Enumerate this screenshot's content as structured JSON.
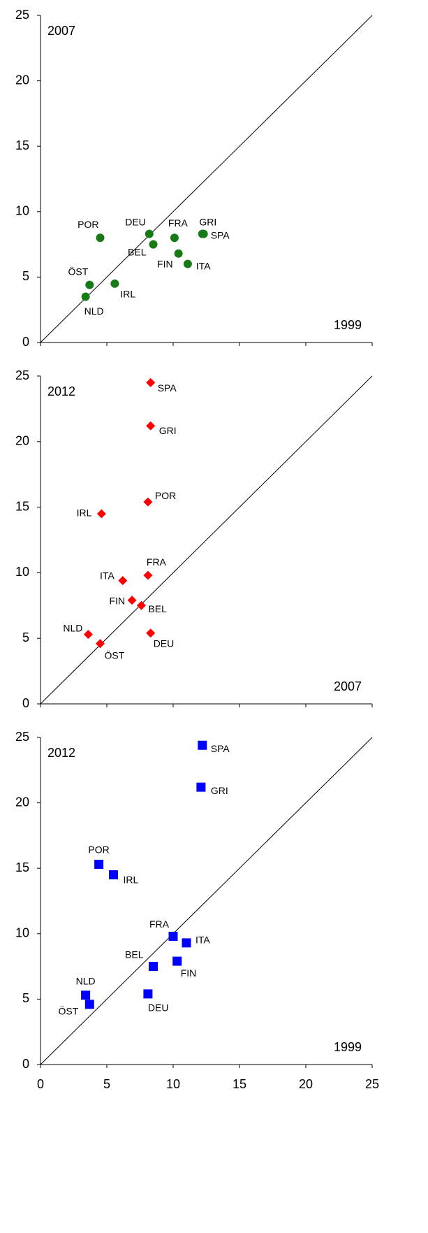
{
  "chart_data": [
    {
      "type": "scatter",
      "y_label": "2007",
      "x_label": "1999",
      "marker": "circle",
      "color": "#177a17",
      "labels": [
        "SPA",
        "GRI",
        "POR",
        "IRL",
        "FRA",
        "ITA",
        "FIN",
        "BEL",
        "NLD",
        "ÖST",
        "DEU"
      ],
      "x": [
        12.3,
        12.2,
        4.5,
        5.6,
        10.1,
        11.1,
        10.4,
        8.5,
        3.4,
        3.7,
        8.2
      ],
      "values": [
        8.3,
        8.3,
        8.0,
        4.5,
        8.0,
        6.0,
        6.8,
        7.5,
        3.5,
        4.4,
        8.3
      ],
      "xlim": [
        0,
        25
      ],
      "ylim": [
        0,
        25
      ],
      "xticks": [
        0,
        5,
        10,
        15,
        20,
        25
      ],
      "yticks": [
        0,
        5,
        10,
        15,
        20,
        25
      ],
      "xtick_labels": false
    },
    {
      "type": "scatter",
      "y_label": "2012",
      "x_label": "2007",
      "marker": "diamond",
      "color": "#ff0000",
      "labels": [
        "SPA",
        "GRI",
        "POR",
        "IRL",
        "FRA",
        "ITA",
        "FIN",
        "BEL",
        "NLD",
        "ÖST",
        "DEU"
      ],
      "x": [
        8.3,
        8.3,
        8.1,
        4.6,
        8.1,
        6.2,
        6.9,
        7.6,
        3.6,
        4.5,
        8.3
      ],
      "values": [
        24.5,
        21.2,
        15.4,
        14.5,
        9.8,
        9.4,
        7.9,
        7.5,
        5.3,
        4.6,
        5.4
      ],
      "xlim": [
        0,
        25
      ],
      "ylim": [
        0,
        25
      ],
      "xticks": [
        0,
        5,
        10,
        15,
        20,
        25
      ],
      "yticks": [
        0,
        5,
        10,
        15,
        20,
        25
      ],
      "xtick_labels": false
    },
    {
      "type": "scatter",
      "y_label": "2012",
      "x_label": "1999",
      "marker": "square",
      "color": "#0000ff",
      "labels": [
        "SPA",
        "GRI",
        "POR",
        "IRL",
        "FRA",
        "ITA",
        "FIN",
        "BEL",
        "NLD",
        "ÖST",
        "DEU"
      ],
      "x": [
        12.2,
        12.1,
        4.4,
        5.5,
        10.0,
        11.0,
        10.3,
        8.5,
        3.4,
        3.7,
        8.1
      ],
      "values": [
        24.4,
        21.2,
        15.3,
        14.5,
        9.8,
        9.3,
        7.9,
        7.5,
        5.3,
        4.6,
        5.4
      ],
      "xlim": [
        0,
        25
      ],
      "ylim": [
        0,
        25
      ],
      "xticks": [
        0,
        5,
        10,
        15,
        20,
        25
      ],
      "yticks": [
        0,
        5,
        10,
        15,
        20,
        25
      ],
      "xtick_labels": true
    }
  ]
}
